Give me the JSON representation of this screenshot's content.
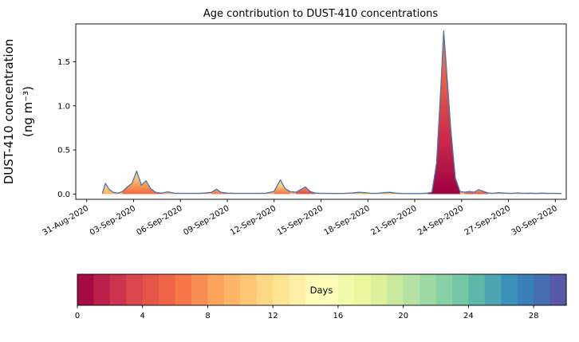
{
  "chart_data": {
    "type": "area",
    "title": "Age contribution to DUST-410 concentrations",
    "xlabel": "",
    "ylabel": "DUST-410 concentration (ng m⁻³)",
    "ylabel_line1": "DUST-410 concentration",
    "ylabel_line2": "(ng m⁻³)",
    "x_unit": "days since 31-Aug-2020",
    "grid": false,
    "legend": "none",
    "xlim_days": [
      -0.7,
      30.7
    ],
    "ylim": [
      -0.06,
      1.93
    ],
    "x_tick_days": [
      0,
      3,
      6,
      9,
      12,
      15,
      18,
      21,
      24,
      27,
      30
    ],
    "x_tick_labels": [
      "31-Aug-2020",
      "03-Sep-2020",
      "06-Sep-2020",
      "09-Sep-2020",
      "12-Sep-2020",
      "15-Sep-2020",
      "18-Sep-2020",
      "21-Sep-2020",
      "24-Sep-2020",
      "27-Sep-2020",
      "30-Sep-2020"
    ],
    "y_tick_values": [
      0,
      0.5,
      1.0,
      1.5
    ],
    "y_tick_labels": [
      "0.0",
      "0.5",
      "1.0",
      "1.5"
    ],
    "line_color": "#4575b4",
    "baseline_fill": "#fdae61",
    "x_days": [
      1.0,
      1.2,
      1.45,
      1.7,
      2.0,
      2.3,
      2.6,
      2.9,
      3.2,
      3.5,
      3.8,
      4.1,
      4.4,
      4.8,
      5.2,
      5.6,
      6.0,
      6.5,
      7.0,
      7.5,
      8.0,
      8.3,
      8.6,
      9.0,
      9.5,
      10.0,
      10.5,
      11.0,
      11.5,
      12.0,
      12.4,
      12.7,
      13.0,
      13.4,
      13.7,
      14.0,
      14.3,
      14.6,
      15.0,
      15.5,
      16.0,
      16.5,
      17.0,
      17.4,
      17.8,
      18.2,
      18.6,
      19.0,
      19.4,
      19.8,
      20.2,
      20.6,
      21.0,
      21.4,
      21.8,
      22.1,
      22.4,
      22.7,
      22.85,
      23.0,
      23.3,
      23.6,
      23.9,
      24.2,
      24.5,
      24.8,
      25.1,
      25.4,
      25.7,
      26.0,
      26.4,
      26.8,
      27.2,
      27.6,
      28.0,
      28.4,
      28.8,
      29.2,
      29.6,
      30.0,
      30.4
    ],
    "y_values": [
      0.005,
      0.12,
      0.05,
      0.02,
      0.01,
      0.03,
      0.08,
      0.12,
      0.26,
      0.1,
      0.15,
      0.06,
      0.02,
      0.01,
      0.025,
      0.01,
      0.008,
      0.008,
      0.008,
      0.01,
      0.02,
      0.055,
      0.02,
      0.01,
      0.008,
      0.008,
      0.008,
      0.008,
      0.01,
      0.03,
      0.16,
      0.06,
      0.03,
      0.02,
      0.05,
      0.08,
      0.03,
      0.012,
      0.008,
      0.008,
      0.006,
      0.008,
      0.012,
      0.02,
      0.015,
      0.008,
      0.008,
      0.015,
      0.02,
      0.01,
      0.006,
      0.005,
      0.005,
      0.006,
      0.01,
      0.02,
      0.35,
      1.3,
      1.85,
      1.5,
      0.75,
      0.18,
      0.03,
      0.02,
      0.03,
      0.02,
      0.05,
      0.03,
      0.012,
      0.008,
      0.015,
      0.01,
      0.008,
      0.012,
      0.008,
      0.01,
      0.008,
      0.01,
      0.008,
      0.008,
      0.005
    ],
    "fill_events": [
      {
        "start": 0.9,
        "end": 2.2,
        "age_note": "young-mid age, orange-yellow",
        "color_stops": [
          "#fdae61",
          "#fee08b"
        ]
      },
      {
        "start": 2.2,
        "end": 5.0,
        "age_note": "orange core peak",
        "color_stops": [
          "#ef653d",
          "#fdae61",
          "#fee08b"
        ]
      },
      {
        "start": 7.7,
        "end": 9.3,
        "age_note": "small orange bump",
        "color_stops": [
          "#f46d43",
          "#fdae61"
        ]
      },
      {
        "start": 11.8,
        "end": 13.2,
        "age_note": "orange-yellow peak",
        "color_stops": [
          "#f46d43",
          "#fdc46d",
          "#fee08b"
        ]
      },
      {
        "start": 13.2,
        "end": 14.8,
        "age_note": "red-orange peak",
        "color_stops": [
          "#d94d4c",
          "#f9984f"
        ]
      },
      {
        "start": 21.7,
        "end": 24.05,
        "age_note": "main spike, very young ages",
        "color_stops": [
          "#9e0142",
          "#c92a49",
          "#e65948",
          "#f67a49"
        ]
      },
      {
        "start": 24.05,
        "end": 25.9,
        "age_note": "post-spike orange bump",
        "color_stops": [
          "#e35043",
          "#fca95f"
        ]
      }
    ],
    "colorbar": {
      "label": "Days",
      "vmin": 0,
      "vmax": 30,
      "n_segments": 30,
      "ticks": [
        0,
        4,
        8,
        12,
        16,
        20,
        24,
        28
      ],
      "palette_stops": [
        [
          0.0,
          "#9e0142"
        ],
        [
          0.1,
          "#d53e4f"
        ],
        [
          0.2,
          "#f46d43"
        ],
        [
          0.3,
          "#fdae61"
        ],
        [
          0.4,
          "#fee08b"
        ],
        [
          0.5,
          "#ffffbf"
        ],
        [
          0.6,
          "#e6f598"
        ],
        [
          0.7,
          "#abdda4"
        ],
        [
          0.8,
          "#66c2a5"
        ],
        [
          0.9,
          "#3288bd"
        ],
        [
          1.0,
          "#5e4fa2"
        ]
      ]
    }
  }
}
